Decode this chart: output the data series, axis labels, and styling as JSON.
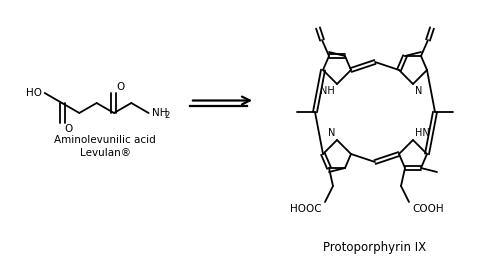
{
  "bg_color": "#ffffff",
  "text_color": "#000000",
  "line_color": "#000000",
  "lw": 1.3,
  "label1_line1": "Aminolevunilic acid",
  "label1_line2": "Levulan®",
  "label2": "Protoporphyrin IX",
  "label_hooc": "HOOC",
  "label_cooh": "COOH",
  "figsize": [
    4.94,
    2.62
  ],
  "dpi": 100
}
